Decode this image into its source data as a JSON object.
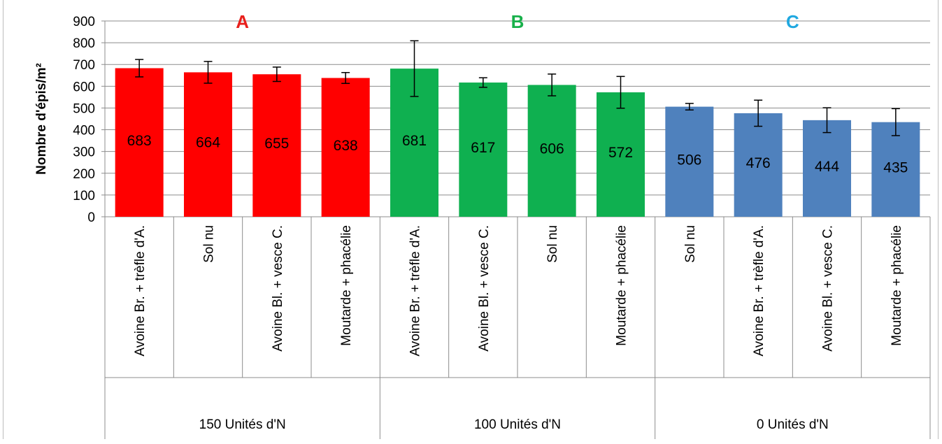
{
  "chart_data": {
    "type": "bar",
    "ylabel": "Nombre d'épis/m²",
    "xlabel": "",
    "ylim": [
      0,
      900
    ],
    "yticks": [
      0,
      100,
      200,
      300,
      400,
      500,
      600,
      700,
      800,
      900
    ],
    "grid": true,
    "groups": [
      {
        "label": "150 Unités d'N",
        "letter": "A",
        "letter_color": "#e8201c",
        "color": "#ff0000",
        "categories": [
          "Avoine Br. + trèfle d'A.",
          "Sol nu",
          "Avoine Bl. + vesce C.",
          "Moutarde + phacélie"
        ],
        "values": [
          683,
          664,
          655,
          638
        ],
        "errors": [
          40,
          50,
          33,
          25
        ],
        "labels": [
          "683",
          "664",
          "655",
          "638"
        ]
      },
      {
        "label": "100 Unités d'N",
        "letter": "B",
        "letter_color": "#18b04a",
        "color": "#0fb050",
        "categories": [
          "Avoine Br. + trèfle d'A.",
          "Avoine Bl. + vesce C.",
          "Sol nu",
          "Moutarde + phacélie"
        ],
        "values": [
          681,
          617,
          606,
          572
        ],
        "errors": [
          128,
          22,
          50,
          73
        ],
        "labels": [
          "681",
          "617",
          "606",
          "572"
        ]
      },
      {
        "label": "0 Unités d'N",
        "letter": "C",
        "letter_color": "#1fa8e0",
        "color": "#4f81bd",
        "categories": [
          "Sol nu",
          "Avoine Br. + trèfle d'A.",
          "Avoine Bl. + vesce C.",
          "Moutarde + phacélie"
        ],
        "values": [
          506,
          476,
          444,
          435
        ],
        "errors": [
          15,
          60,
          57,
          62
        ],
        "labels": [
          "506",
          "476",
          "444",
          "435"
        ]
      }
    ]
  }
}
